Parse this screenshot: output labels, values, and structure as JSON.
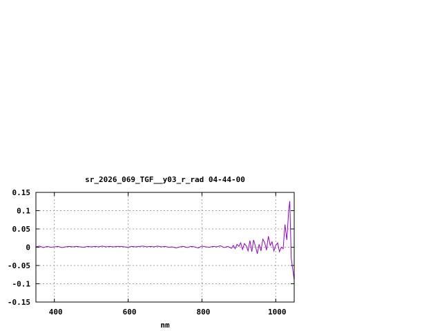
{
  "chart_data": {
    "type": "line",
    "title": "sr_2026_069_TGF__y03_r_rad 04-44-00",
    "xlabel": "nm",
    "ylabel": "",
    "xlim": [
      350,
      1050
    ],
    "ylim": [
      -0.15,
      0.15
    ],
    "xticks": [
      400,
      600,
      800,
      1000
    ],
    "yticks": [
      0.15,
      0.1,
      0.05,
      0,
      -0.05,
      -0.1,
      -0.15
    ],
    "ytick_labels": [
      "0.15",
      "0.1",
      "0.05",
      "0",
      "-0.05",
      "-0.1",
      "-0.15"
    ],
    "grid": true,
    "legend": "none",
    "series": [
      {
        "color": "#9400d3",
        "x": [
          350,
          360,
          370,
          380,
          390,
          400,
          410,
          420,
          430,
          440,
          450,
          460,
          470,
          480,
          490,
          500,
          510,
          520,
          530,
          540,
          550,
          560,
          570,
          580,
          590,
          600,
          610,
          620,
          630,
          640,
          650,
          660,
          670,
          680,
          690,
          700,
          710,
          720,
          730,
          740,
          750,
          760,
          770,
          780,
          790,
          800,
          810,
          820,
          830,
          840,
          850,
          860,
          870,
          880,
          885,
          890,
          895,
          900,
          905,
          910,
          915,
          920,
          925,
          930,
          935,
          940,
          945,
          950,
          955,
          960,
          965,
          970,
          975,
          980,
          985,
          990,
          995,
          1000,
          1005,
          1010,
          1015,
          1020,
          1025,
          1030,
          1035,
          1038,
          1042,
          1046,
          1050
        ],
        "y": [
          0.001,
          0.003,
          -0.001,
          0.002,
          0,
          0.001,
          0.002,
          -0.001,
          0.001,
          0.002,
          0.001,
          0.002,
          0.001,
          0,
          0.002,
          0.001,
          0.002,
          0.001,
          0.003,
          0.001,
          0.002,
          0.001,
          0.002,
          0.002,
          0.001,
          0,
          0.002,
          0.001,
          0.002,
          0.003,
          0.001,
          0.002,
          0.001,
          0.003,
          0.001,
          0.002,
          0,
          0.001,
          -0.002,
          0.001,
          0.002,
          -0.001,
          0.002,
          0.001,
          -0.002,
          0.003,
          0.001,
          0,
          0.002,
          0.001,
          0.004,
          -0.001,
          0.002,
          -0.003,
          0.005,
          -0.004,
          0.008,
          0.002,
          0.012,
          -0.006,
          0.01,
          0.004,
          -0.01,
          0.018,
          -0.012,
          0.02,
          0.002,
          -0.018,
          0.008,
          -0.01,
          0.022,
          0.012,
          -0.008,
          0.03,
          0.005,
          0.015,
          -0.01,
          0.005,
          0.012,
          -0.012,
          0,
          -0.004,
          0.062,
          0.02,
          0.1,
          0.126,
          -0.03,
          -0.06,
          -0.09
        ]
      }
    ]
  }
}
